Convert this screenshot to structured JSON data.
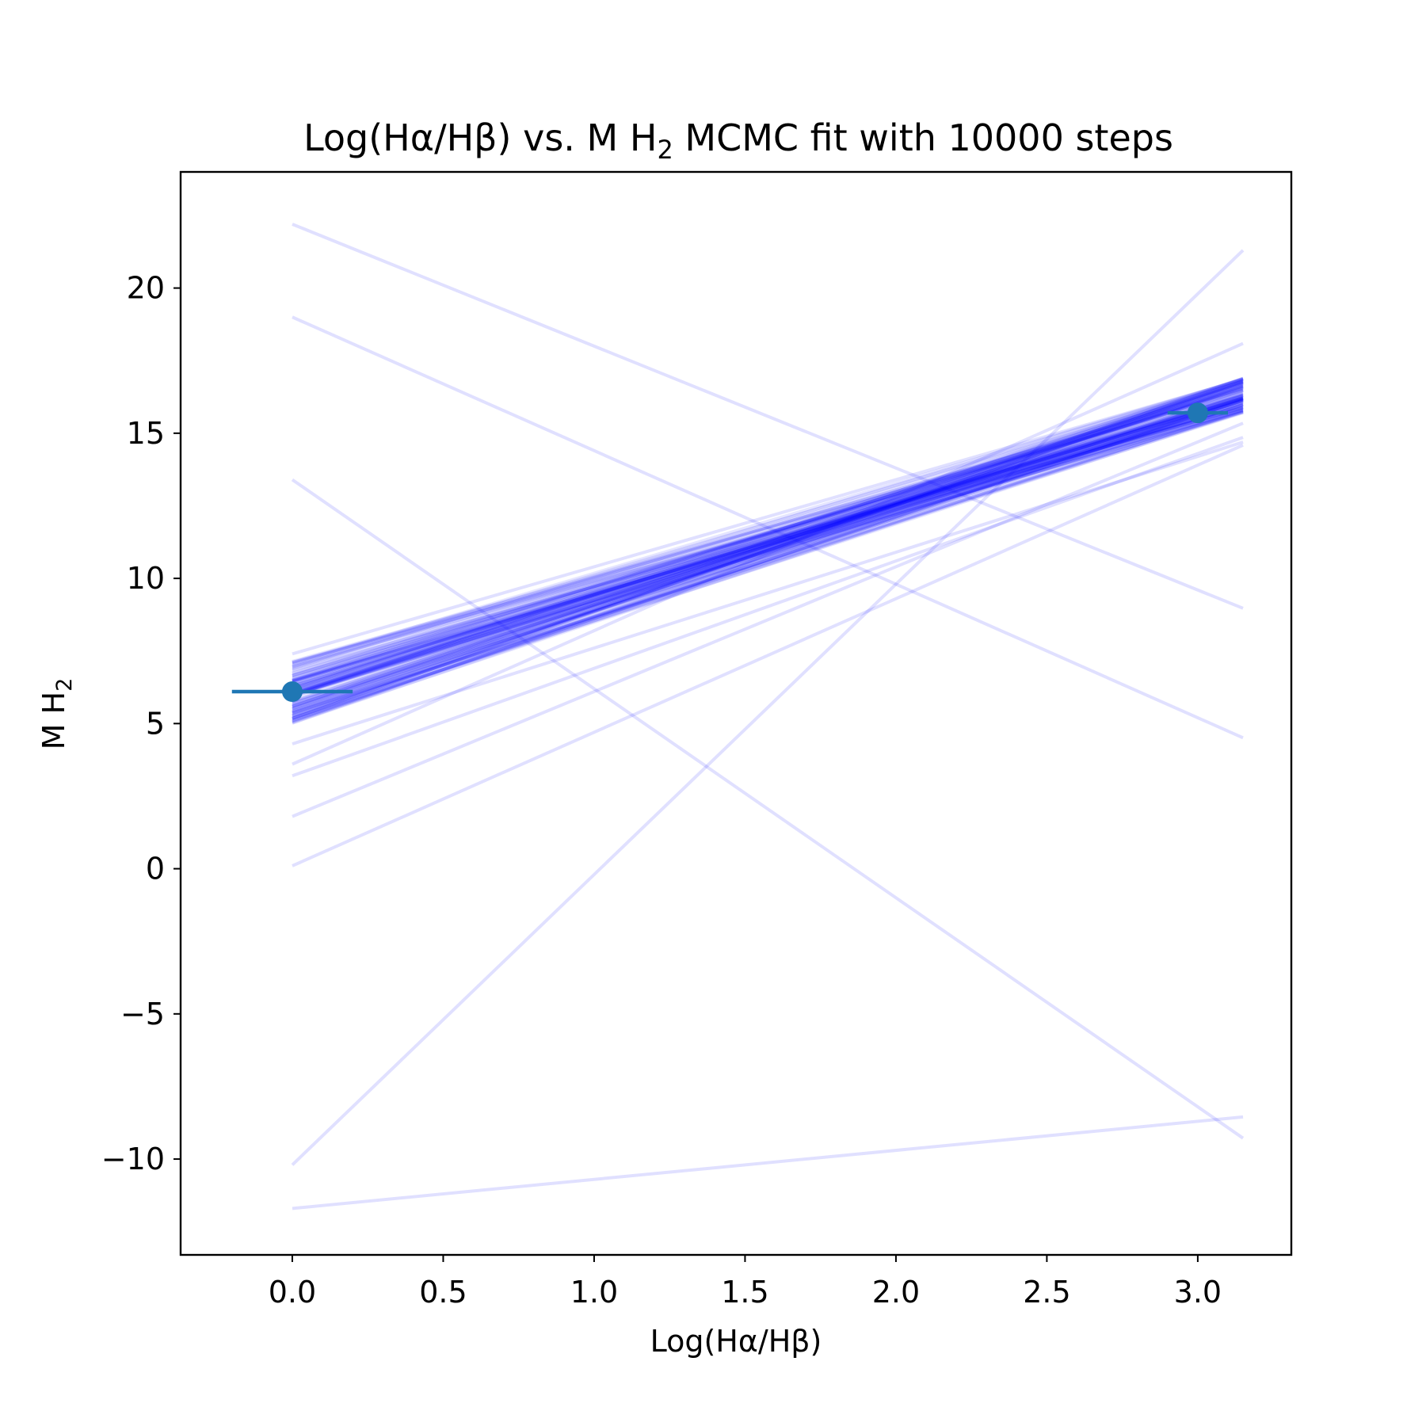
{
  "chart_data": {
    "type": "line",
    "title_parts": {
      "pre": "Log(Hα/Hβ) vs. M H",
      "sub": "2",
      "post": " MCMC fit with 10000 steps"
    },
    "xlabel": "Log(Hα/Hβ)",
    "ylabel_parts": {
      "pre": "M H",
      "sub": "2"
    },
    "xlim": [
      -0.37,
      3.31
    ],
    "ylim": [
      -13.3,
      24.0
    ],
    "xticks": [
      0.0,
      0.5,
      1.0,
      1.5,
      2.0,
      2.5,
      3.0
    ],
    "xtick_labels": [
      "0.0",
      "0.5",
      "1.0",
      "1.5",
      "2.0",
      "2.5",
      "3.0"
    ],
    "yticks": [
      -10,
      -5,
      0,
      5,
      10,
      15,
      20
    ],
    "ytick_labels": [
      "−10",
      "−5",
      "0",
      "5",
      "10",
      "15",
      "20"
    ],
    "grid": false,
    "points": [
      {
        "x": 0.0,
        "y": 6.1,
        "xerr": 0.2,
        "yerr": 0.0
      },
      {
        "x": 3.0,
        "y": 15.7,
        "xerr": 0.1,
        "yerr": 0.0
      }
    ],
    "line_x_range": [
      0.0,
      3.15
    ],
    "sample_lines": {
      "outliers": [
        {
          "intercept": 22.2,
          "slope": -4.2
        },
        {
          "intercept": 19.0,
          "slope": -4.6
        },
        {
          "intercept": 13.4,
          "slope": -7.2
        },
        {
          "intercept": -10.2,
          "slope": 10.0
        },
        {
          "intercept": -11.7,
          "slope": 1.0
        },
        {
          "intercept": 0.1,
          "slope": 4.6
        },
        {
          "intercept": 1.8,
          "slope": 4.3
        },
        {
          "intercept": 3.2,
          "slope": 3.7
        },
        {
          "intercept": 4.3,
          "slope": 3.3
        },
        {
          "intercept": 3.6,
          "slope": 4.6
        },
        {
          "intercept": 7.4,
          "slope": 3.0
        }
      ],
      "bundle_intercept_range": [
        5.0,
        7.2
      ],
      "bundle_end_range": [
        15.7,
        16.9
      ],
      "bundle_count": 110
    },
    "colors": {
      "sample_line": "#0000ff",
      "data_point": "#1f77b4",
      "axis": "#000000"
    }
  }
}
